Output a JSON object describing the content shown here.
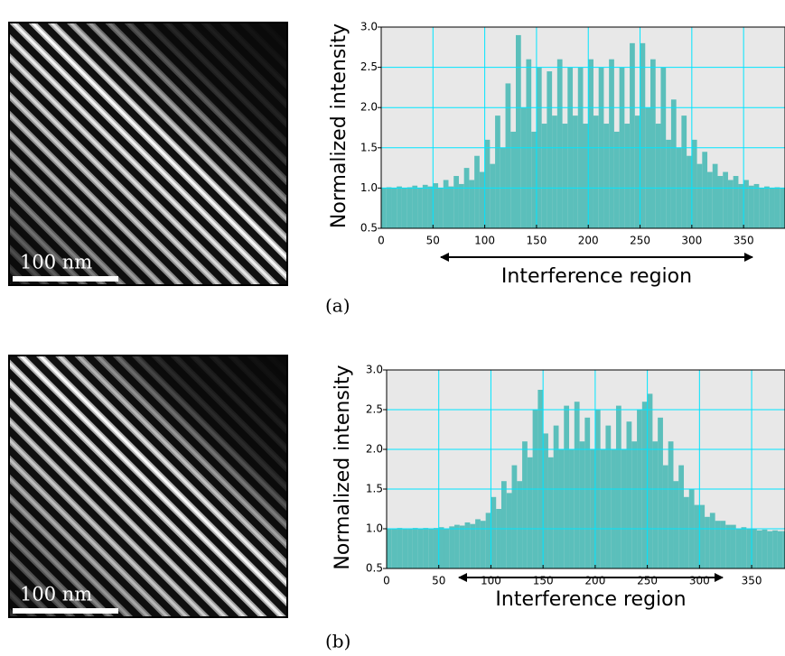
{
  "panels": [
    {
      "label": "(a)",
      "scale_bar": "100 nm"
    },
    {
      "label": "(b)",
      "scale_bar": "100 nm"
    }
  ],
  "chart_data": [
    {
      "type": "bar",
      "ylabel": "Normalized intensity",
      "annotation": "Interference region",
      "color": "#5bbfbb",
      "grid": true,
      "xlim": [
        0,
        390
      ],
      "ylim": [
        0.5,
        3.0
      ],
      "xticks": [
        0,
        50,
        100,
        150,
        200,
        250,
        300,
        350
      ],
      "yticks": [
        0.5,
        {
          "value": 1,
          "label": "1.0"
        },
        1.5,
        {
          "value": 2,
          "label": "2.0"
        },
        2.5,
        {
          "value": 3,
          "label": "3.0"
        }
      ],
      "x": [
        0,
        5,
        10,
        15,
        20,
        25,
        30,
        35,
        40,
        45,
        50,
        55,
        60,
        65,
        70,
        75,
        80,
        85,
        90,
        95,
        100,
        105,
        110,
        115,
        120,
        125,
        130,
        135,
        140,
        145,
        150,
        155,
        160,
        165,
        170,
        175,
        180,
        185,
        190,
        195,
        200,
        205,
        210,
        215,
        220,
        225,
        230,
        235,
        240,
        245,
        250,
        255,
        260,
        265,
        270,
        275,
        280,
        285,
        290,
        295,
        300,
        305,
        310,
        315,
        320,
        325,
        330,
        335,
        340,
        345,
        350,
        355,
        360,
        365,
        370,
        375,
        380,
        385
      ],
      "values": [
        1.0,
        1.01,
        1.0,
        1.02,
        1.0,
        1.01,
        1.03,
        1.0,
        1.04,
        1.02,
        1.06,
        1.0,
        1.1,
        1.02,
        1.15,
        1.05,
        1.25,
        1.1,
        1.4,
        1.2,
        1.6,
        1.3,
        1.9,
        1.5,
        2.3,
        1.7,
        2.9,
        2.0,
        2.6,
        1.7,
        2.5,
        1.8,
        2.45,
        1.9,
        2.6,
        1.8,
        2.5,
        1.9,
        2.5,
        1.8,
        2.6,
        1.9,
        2.5,
        1.8,
        2.6,
        1.7,
        2.5,
        1.8,
        2.8,
        1.9,
        2.8,
        2.0,
        2.6,
        1.8,
        2.5,
        1.6,
        2.1,
        1.5,
        1.9,
        1.4,
        1.6,
        1.3,
        1.45,
        1.2,
        1.3,
        1.15,
        1.2,
        1.1,
        1.15,
        1.05,
        1.1,
        1.03,
        1.05,
        1.0,
        1.02,
        1.0,
        1.01,
        1.0
      ]
    },
    {
      "type": "bar",
      "ylabel": "Normalized intensity",
      "annotation": "Interference region",
      "color": "#5bbfbb",
      "grid": true,
      "xlim": [
        0,
        382
      ],
      "ylim": [
        0.5,
        3.0
      ],
      "xticks": [
        0,
        50,
        100,
        150,
        200,
        250,
        300,
        350
      ],
      "yticks": [
        0.5,
        {
          "value": 1,
          "label": "1.0"
        },
        1.5,
        {
          "value": 2,
          "label": "2.0"
        },
        2.5,
        {
          "value": 3,
          "label": "3.0"
        }
      ],
      "x": [
        0,
        5,
        10,
        15,
        20,
        25,
        30,
        35,
        40,
        45,
        50,
        55,
        60,
        65,
        70,
        75,
        80,
        85,
        90,
        95,
        100,
        105,
        110,
        115,
        120,
        125,
        130,
        135,
        140,
        145,
        150,
        155,
        160,
        165,
        170,
        175,
        180,
        185,
        190,
        195,
        200,
        205,
        210,
        215,
        220,
        225,
        230,
        235,
        240,
        245,
        250,
        255,
        260,
        265,
        270,
        275,
        280,
        285,
        290,
        295,
        300,
        305,
        310,
        315,
        320,
        325,
        330,
        335,
        340,
        345,
        350,
        355,
        360,
        365,
        370,
        375,
        380
      ],
      "values": [
        1.0,
        1.0,
        1.01,
        1.0,
        1.0,
        1.01,
        1.0,
        1.01,
        1.0,
        1.01,
        1.02,
        1.0,
        1.03,
        1.05,
        1.04,
        1.08,
        1.06,
        1.12,
        1.1,
        1.2,
        1.4,
        1.25,
        1.6,
        1.45,
        1.8,
        1.6,
        2.1,
        1.9,
        2.5,
        2.75,
        2.2,
        1.9,
        2.3,
        2.0,
        2.55,
        2.0,
        2.6,
        2.1,
        2.4,
        2.0,
        2.5,
        2.0,
        2.3,
        2.0,
        2.55,
        2.0,
        2.35,
        2.1,
        2.5,
        2.6,
        2.7,
        2.1,
        2.4,
        1.8,
        2.1,
        1.6,
        1.8,
        1.4,
        1.5,
        1.3,
        1.3,
        1.15,
        1.2,
        1.1,
        1.1,
        1.05,
        1.05,
        1.0,
        1.02,
        1.0,
        1.0,
        0.98,
        0.99,
        0.97,
        0.98,
        0.97,
        0.97
      ]
    }
  ]
}
